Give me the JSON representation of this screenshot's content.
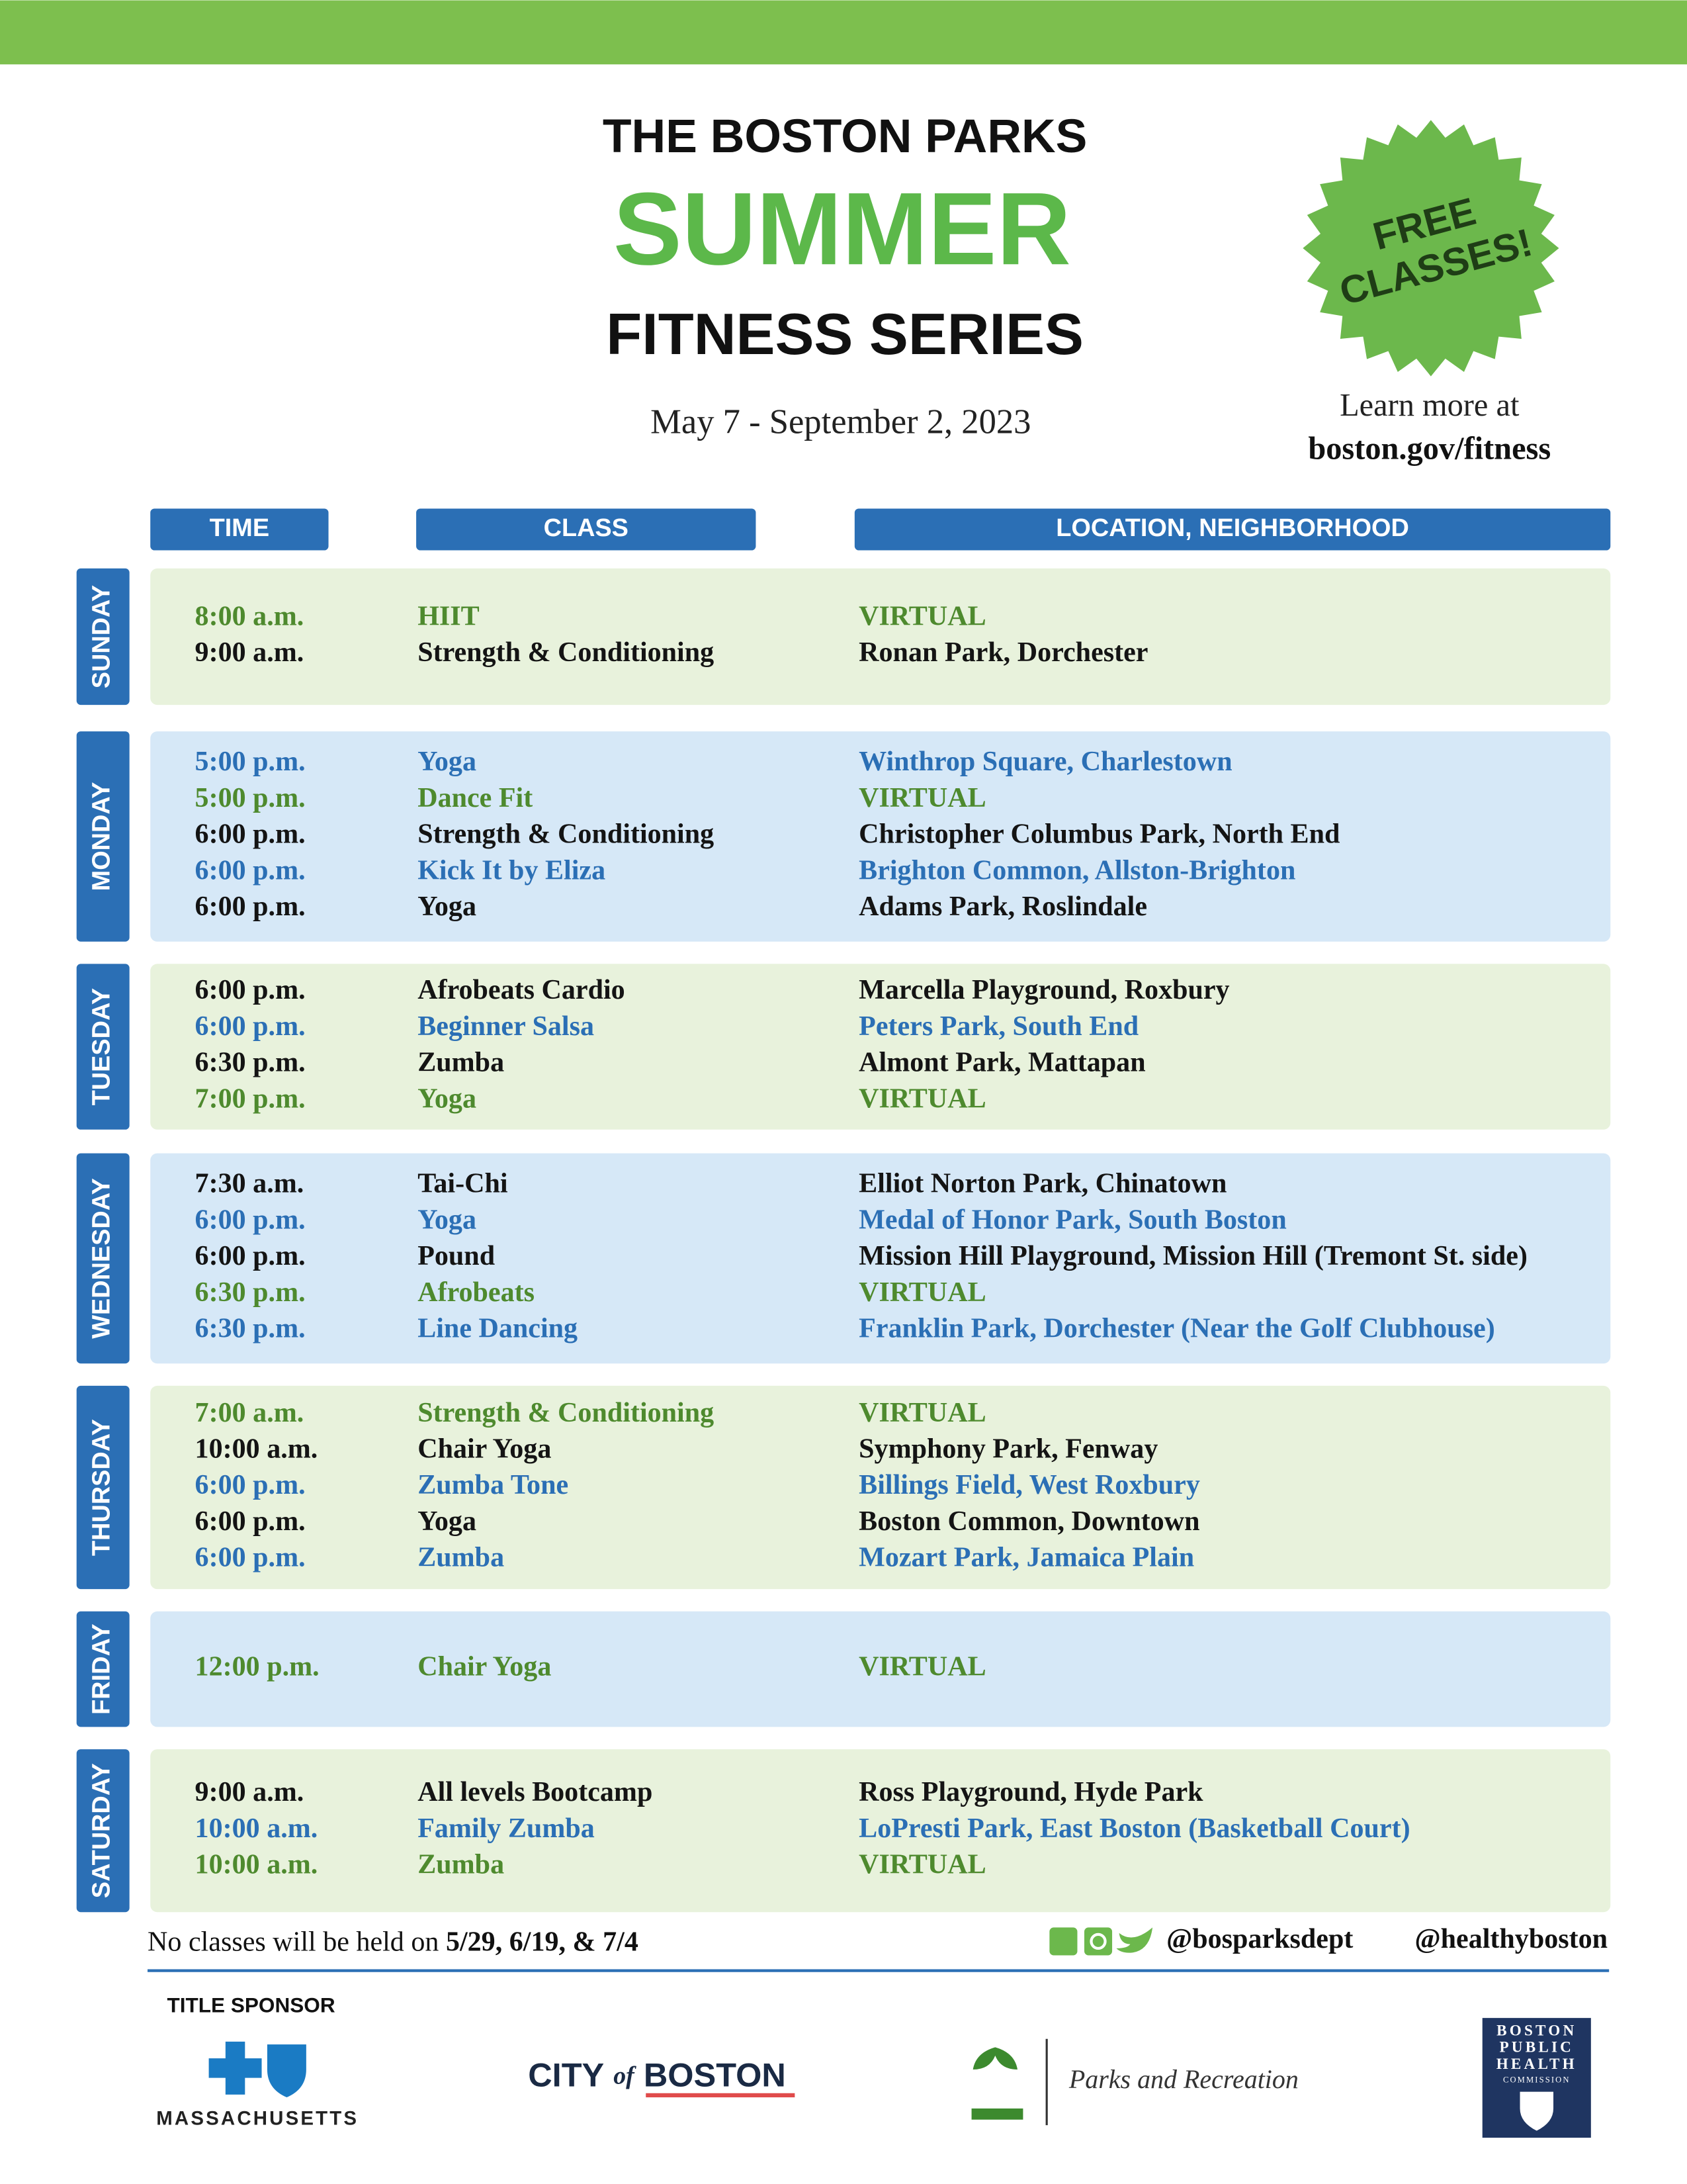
{
  "header": {
    "title_line1": "THE BOSTON PARKS",
    "title_line2": "SUMMER",
    "title_line3": "FITNESS SERIES",
    "dates": "May 7 - September 2, 2023",
    "badge": [
      "FREE",
      "CLASSES!"
    ],
    "learn_more": "Learn more at",
    "url": "boston.gov/fitness"
  },
  "columns": [
    "TIME",
    "CLASS",
    "LOCATION, NEIGHBORHOOD"
  ],
  "days": [
    {
      "name": "SUNDAY",
      "background": "green",
      "rows": [
        {
          "time": "8:00 a.m.",
          "class": "HIIT",
          "location": "VIRTUAL",
          "color": "green"
        },
        {
          "time": "9:00 a.m.",
          "class": "Strength & Conditioning",
          "location": "Ronan Park, Dorchester",
          "color": "black"
        }
      ]
    },
    {
      "name": "MONDAY",
      "background": "blue",
      "rows": [
        {
          "time": "5:00 p.m.",
          "class": "Yoga",
          "location": "Winthrop Square, Charlestown",
          "color": "blue"
        },
        {
          "time": "5:00 p.m.",
          "class": "Dance Fit",
          "location": "VIRTUAL",
          "color": "green"
        },
        {
          "time": "6:00 p.m.",
          "class": "Strength & Conditioning",
          "location": "Christopher Columbus Park, North End",
          "color": "black"
        },
        {
          "time": "6:00 p.m.",
          "class": "Kick It by Eliza",
          "location": "Brighton Common, Allston-Brighton",
          "color": "blue"
        },
        {
          "time": "6:00 p.m.",
          "class": "Yoga",
          "location": "Adams Park, Roslindale",
          "color": "black"
        }
      ]
    },
    {
      "name": "TUESDAY",
      "background": "green",
      "rows": [
        {
          "time": "6:00 p.m.",
          "class": "Afrobeats Cardio",
          "location": "Marcella Playground, Roxbury",
          "color": "black"
        },
        {
          "time": "6:00 p.m.",
          "class": "Beginner Salsa",
          "location": "Peters Park, South End",
          "color": "blue"
        },
        {
          "time": "6:30 p.m.",
          "class": "Zumba",
          "location": "Almont Park, Mattapan",
          "color": "black"
        },
        {
          "time": "7:00 p.m.",
          "class": "Yoga",
          "location": "VIRTUAL",
          "color": "green"
        }
      ]
    },
    {
      "name": "WEDNESDAY",
      "background": "blue",
      "rows": [
        {
          "time": "7:30 a.m.",
          "class": "Tai-Chi",
          "location": "Elliot Norton Park, Chinatown",
          "color": "black"
        },
        {
          "time": "6:00 p.m.",
          "class": "Yoga",
          "location": "Medal of Honor Park, South Boston",
          "color": "blue"
        },
        {
          "time": "6:00 p.m.",
          "class": "Pound",
          "location": "Mission Hill Playground, Mission Hill (Tremont St. side)",
          "color": "black"
        },
        {
          "time": "6:30 p.m.",
          "class": "Afrobeats",
          "location": "VIRTUAL",
          "color": "green"
        },
        {
          "time": "6:30 p.m.",
          "class": "Line Dancing",
          "location": "Franklin Park, Dorchester (Near the Golf Clubhouse)",
          "color": "blue"
        }
      ]
    },
    {
      "name": "THURSDAY",
      "background": "green",
      "rows": [
        {
          "time": "7:00 a.m.",
          "class": "Strength & Conditioning",
          "location": "VIRTUAL",
          "color": "green"
        },
        {
          "time": "10:00 a.m.",
          "class": "Chair Yoga",
          "location": "Symphony Park, Fenway",
          "color": "black"
        },
        {
          "time": "6:00 p.m.",
          "class": "Zumba Tone",
          "location": "Billings Field, West Roxbury",
          "color": "blue"
        },
        {
          "time": "6:00 p.m.",
          "class": "Yoga",
          "location": "Boston Common, Downtown",
          "color": "black"
        },
        {
          "time": "6:00 p.m.",
          "class": "Zumba",
          "location": "Mozart Park, Jamaica Plain",
          "color": "blue"
        }
      ]
    },
    {
      "name": "FRIDAY",
      "background": "blue",
      "rows": [
        {
          "time": "12:00 p.m.",
          "class": "Chair Yoga",
          "location": "VIRTUAL",
          "color": "green"
        }
      ]
    },
    {
      "name": "SATURDAY",
      "background": "green",
      "rows": [
        {
          "time": "9:00 a.m.",
          "class": "All levels Bootcamp",
          "location": "Ross Playground, Hyde Park",
          "color": "black"
        },
        {
          "time": "10:00 a.m.",
          "class": "Family Zumba",
          "location": "LoPresti Park, East Boston (Basketball Court)",
          "color": "blue"
        },
        {
          "time": "10:00 a.m.",
          "class": "Zumba",
          "location": "VIRTUAL",
          "color": "green"
        }
      ]
    }
  ],
  "footer": {
    "note": "No classes will be held on",
    "dates": "5/29, 6/19, & 7/4",
    "handles": [
      "@bosparksdept",
      "@healthyboston"
    ]
  },
  "sponsors": {
    "title_sponsor": "TITLE SPONSOR",
    "bcbs": "MASSACHUSETTS",
    "city": "CITY",
    "of": "of",
    "boston": "BOSTON",
    "parks": "Parks and Recreation",
    "bphc": [
      "BOSTON",
      "PUBLIC",
      "HEALTH",
      "COMMISSION"
    ]
  }
}
